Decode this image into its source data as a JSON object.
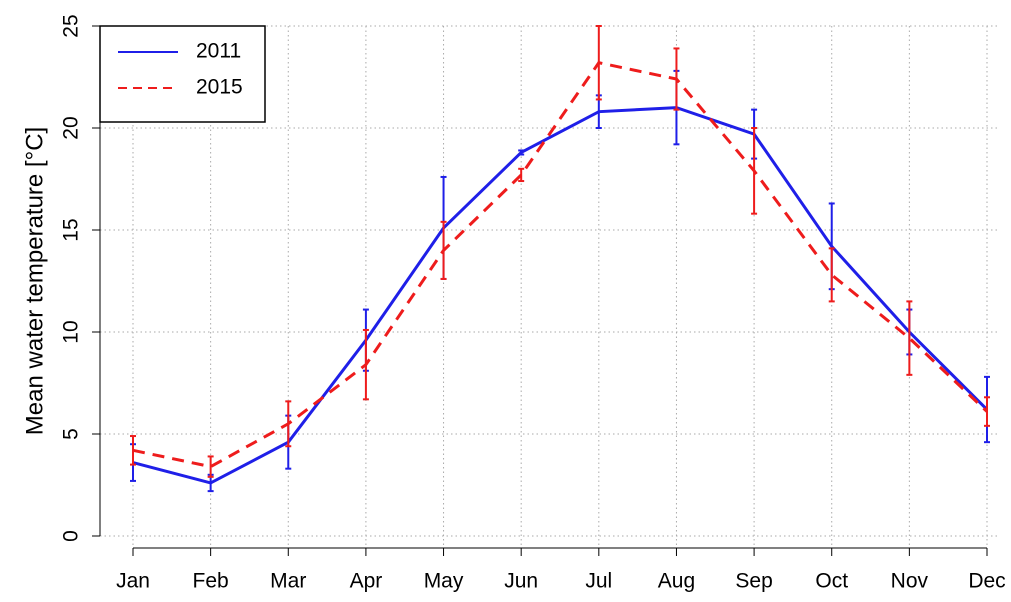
{
  "chart_data": {
    "type": "line",
    "ylabel": "Mean water temperature [°C]",
    "categories": [
      "Jan",
      "Feb",
      "Mar",
      "Apr",
      "May",
      "Jun",
      "Jul",
      "Aug",
      "Sep",
      "Oct",
      "Nov",
      "Dec"
    ],
    "series": [
      {
        "name": "2011",
        "color": "#1f1fe8",
        "linestyle": "solid",
        "values": [
          3.6,
          2.6,
          4.6,
          9.6,
          15.1,
          18.8,
          20.8,
          21.0,
          19.7,
          14.2,
          10.0,
          6.2
        ],
        "errors": [
          0.9,
          0.4,
          1.3,
          1.5,
          2.5,
          0.1,
          0.8,
          1.8,
          1.2,
          2.1,
          1.1,
          1.6
        ]
      },
      {
        "name": "2015",
        "color": "#ee1c1c",
        "linestyle": "dashed",
        "values": [
          4.2,
          3.4,
          5.5,
          8.4,
          14.0,
          17.7,
          23.2,
          22.4,
          17.9,
          12.8,
          9.7,
          6.1
        ],
        "errors": [
          0.7,
          0.5,
          1.1,
          1.7,
          1.4,
          0.3,
          1.8,
          1.5,
          2.1,
          1.3,
          1.8,
          0.7
        ]
      }
    ],
    "ylim": [
      0,
      25
    ],
    "yticks": [
      0,
      5,
      10,
      15,
      20,
      25
    ],
    "grid": true,
    "legend": "top-left"
  }
}
